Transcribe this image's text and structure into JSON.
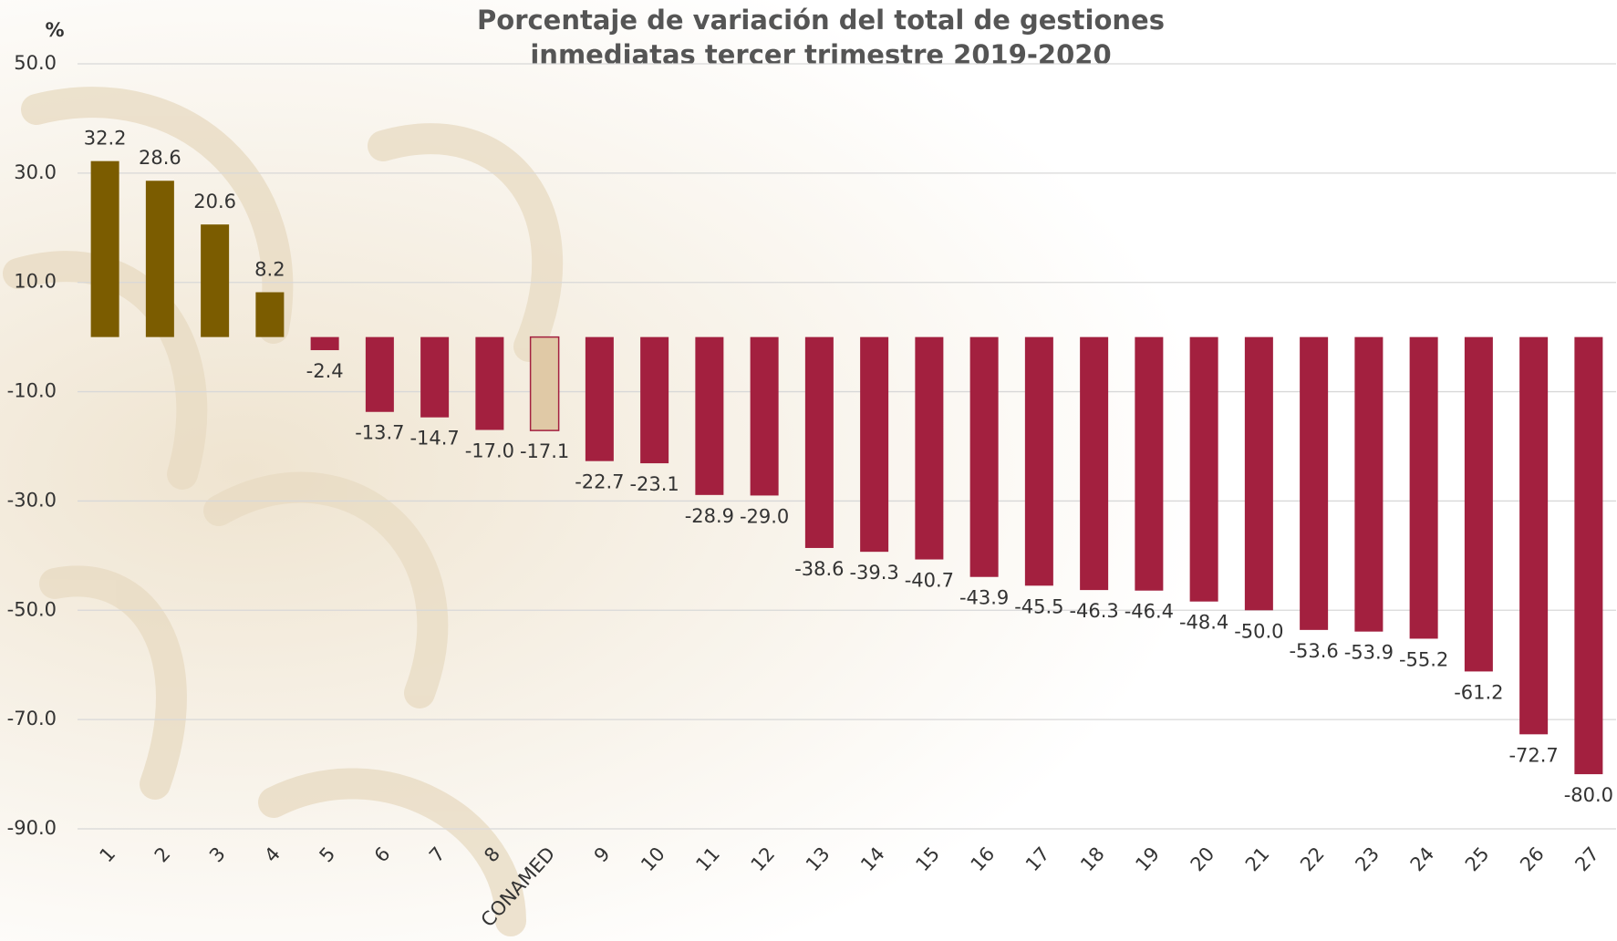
{
  "chart_data": {
    "type": "bar",
    "title": [
      "Porcentaje de variación del total de gestiones",
      "inmediatas tercer trimestre 2019-2020"
    ],
    "y_label": "%",
    "categories": [
      "1",
      "2",
      "3",
      "4",
      "5",
      "6",
      "7",
      "8",
      "CONAMED",
      "9",
      "10",
      "11",
      "12",
      "13",
      "14",
      "15",
      "16",
      "17",
      "18",
      "19",
      "20",
      "21",
      "22",
      "23",
      "24",
      "25",
      "26",
      "27"
    ],
    "values": [
      32.2,
      28.6,
      20.6,
      8.2,
      -2.4,
      -13.7,
      -14.7,
      -17.0,
      -17.1,
      -22.7,
      -23.1,
      -28.9,
      -29.0,
      -38.6,
      -39.3,
      -40.7,
      -43.9,
      -45.5,
      -46.3,
      -46.4,
      -48.4,
      -50.0,
      -53.6,
      -53.9,
      -55.2,
      -61.2,
      -72.7,
      -80.0
    ],
    "value_labels": [
      "32.2",
      "28.6",
      "20.6",
      "8.2",
      "-2.4",
      "-13.7",
      "-14.7",
      "-17.0",
      "-17.1",
      "-22.7",
      "-23.1",
      "-28.9",
      "-29.0",
      "-38.6",
      "-39.3",
      "-40.7",
      "-43.9",
      "-45.5",
      "-46.3",
      "-46.4",
      "-48.4",
      "-50.0",
      "-53.6",
      "-53.9",
      "-55.2",
      "-61.2",
      "-72.7",
      "-80.0"
    ],
    "colors": [
      "#7b5c00",
      "#7b5c00",
      "#7b5c00",
      "#7b5c00",
      "#a3203f",
      "#a3203f",
      "#a3203f",
      "#a3203f",
      "#e0c9a6",
      "#a3203f",
      "#a3203f",
      "#a3203f",
      "#a3203f",
      "#a3203f",
      "#a3203f",
      "#a3203f",
      "#a3203f",
      "#a3203f",
      "#a3203f",
      "#a3203f",
      "#a3203f",
      "#a3203f",
      "#a3203f",
      "#a3203f",
      "#a3203f",
      "#a3203f",
      "#a3203f",
      "#a3203f"
    ],
    "ylim": [
      -90,
      50
    ],
    "yticks": [
      {
        "value": 50,
        "label": "50.0"
      },
      {
        "value": 30,
        "label": "30.0"
      },
      {
        "value": 10,
        "label": "10.0"
      },
      {
        "value": -10,
        "label": "-10.0"
      },
      {
        "value": -30,
        "label": "-30.0"
      },
      {
        "value": -50,
        "label": "-50.0"
      },
      {
        "value": -70,
        "label": "-70.0"
      },
      {
        "value": -90,
        "label": "-90.0"
      }
    ],
    "grid": true
  }
}
